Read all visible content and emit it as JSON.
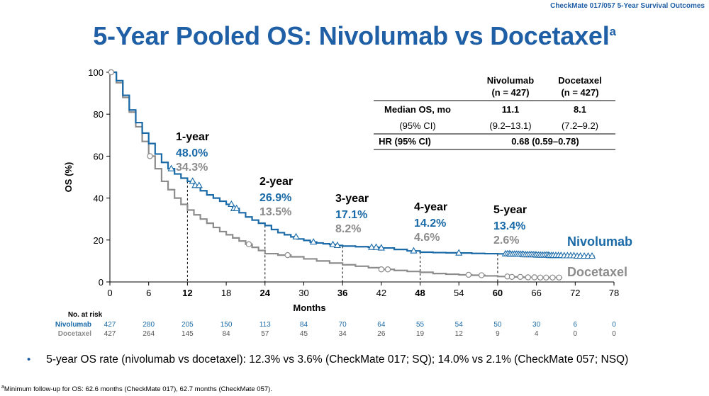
{
  "header": {
    "tag": "CheckMate 017/057 5-Year Survival Outcomes"
  },
  "title": {
    "main": "5-Year Pooled OS: Nivolumab vs Docetaxel",
    "superscript": "a"
  },
  "colors": {
    "nivolumab": "#1a6aa8",
    "docetaxel": "#8c8c8c",
    "title": "#1f5fa6"
  },
  "chart_data": {
    "type": "line",
    "ylabel": "OS (%)",
    "xlabel": "Months",
    "xlim": [
      0,
      78
    ],
    "ylim": [
      0,
      100
    ],
    "x_ticks": [
      0,
      6,
      12,
      18,
      24,
      30,
      36,
      42,
      48,
      54,
      60,
      66,
      72,
      78
    ],
    "y_ticks": [
      0,
      20,
      40,
      60,
      80,
      100
    ],
    "bold_x_ticks": [
      12,
      24,
      36,
      48,
      60
    ],
    "series": [
      {
        "name": "Nivolumab",
        "color": "#1a6aa8",
        "points": [
          [
            0,
            100
          ],
          [
            1,
            96
          ],
          [
            2,
            89
          ],
          [
            3,
            82
          ],
          [
            4,
            76
          ],
          [
            5,
            71
          ],
          [
            6,
            66
          ],
          [
            7,
            61
          ],
          [
            8,
            57
          ],
          [
            9,
            54
          ],
          [
            10,
            51.5
          ],
          [
            11,
            49.5
          ],
          [
            12,
            48
          ],
          [
            13,
            46
          ],
          [
            14,
            43.5
          ],
          [
            15,
            41.5
          ],
          [
            16,
            40
          ],
          [
            17,
            38.5
          ],
          [
            18,
            37
          ],
          [
            19,
            35
          ],
          [
            20,
            33
          ],
          [
            21,
            31
          ],
          [
            22,
            29.5
          ],
          [
            23,
            28
          ],
          [
            24,
            26.9
          ],
          [
            25,
            25
          ],
          [
            26,
            23.5
          ],
          [
            27,
            22.5
          ],
          [
            28,
            21.5
          ],
          [
            29,
            20.5
          ],
          [
            30,
            19.8
          ],
          [
            31,
            19
          ],
          [
            32,
            18.6
          ],
          [
            33,
            18.2
          ],
          [
            34,
            17.8
          ],
          [
            35,
            17.4
          ],
          [
            36,
            17.1
          ],
          [
            38,
            16.8
          ],
          [
            40,
            16.5
          ],
          [
            42,
            16.2
          ],
          [
            44,
            15.5
          ],
          [
            46,
            14.8
          ],
          [
            48,
            14.2
          ],
          [
            50,
            14
          ],
          [
            52,
            13.9
          ],
          [
            54,
            13.8
          ],
          [
            56,
            13.6
          ],
          [
            58,
            13.5
          ],
          [
            60,
            13.4
          ],
          [
            62,
            13.2
          ],
          [
            64,
            13
          ],
          [
            66,
            12.8
          ],
          [
            68,
            12.6
          ],
          [
            70,
            12.5
          ],
          [
            72,
            12.3
          ],
          [
            73,
            12.3
          ],
          [
            75,
            12.3
          ]
        ],
        "censor_x": [
          9.5,
          12.8,
          13.2,
          13.8,
          18.8,
          19.2,
          19.6,
          28.8,
          31.5,
          34.5,
          35.2,
          40.5,
          41.2,
          42,
          47,
          54,
          61.2,
          61.5,
          61.8,
          62,
          62.3,
          62.6,
          62.9,
          63.2,
          63.5,
          63.8,
          64,
          64.3,
          64.6,
          64.9,
          65.2,
          65.5,
          65.8,
          66,
          66.3,
          66.6,
          66.9,
          67.2,
          67.5,
          67.8,
          68,
          68.3,
          68.6,
          69,
          69.4,
          69.8,
          70.3,
          70.8,
          71.3,
          71.8,
          72.3,
          72.8,
          73.4,
          74,
          74.6
        ]
      },
      {
        "name": "Docetaxel",
        "color": "#8c8c8c",
        "points": [
          [
            0,
            100
          ],
          [
            1,
            95
          ],
          [
            2,
            88
          ],
          [
            3,
            81
          ],
          [
            4,
            74
          ],
          [
            5,
            67
          ],
          [
            6,
            60
          ],
          [
            7,
            54
          ],
          [
            8,
            48
          ],
          [
            9,
            44
          ],
          [
            10,
            40
          ],
          [
            11,
            37
          ],
          [
            12,
            34.3
          ],
          [
            13,
            32
          ],
          [
            14,
            30
          ],
          [
            15,
            28
          ],
          [
            16,
            26
          ],
          [
            17,
            24
          ],
          [
            18,
            22.5
          ],
          [
            19,
            21
          ],
          [
            20,
            19.5
          ],
          [
            21,
            18
          ],
          [
            22,
            16.5
          ],
          [
            23,
            15
          ],
          [
            24,
            13.5
          ],
          [
            26,
            12.8
          ],
          [
            28,
            12
          ],
          [
            30,
            11
          ],
          [
            32,
            10
          ],
          [
            34,
            9
          ],
          [
            36,
            8.2
          ],
          [
            38,
            7.5
          ],
          [
            40,
            6.8
          ],
          [
            42,
            6
          ],
          [
            44,
            5.5
          ],
          [
            46,
            5
          ],
          [
            48,
            4.6
          ],
          [
            50,
            4
          ],
          [
            52,
            3.7
          ],
          [
            54,
            3.4
          ],
          [
            56,
            3.2
          ],
          [
            58,
            2.9
          ],
          [
            60,
            2.6
          ],
          [
            62,
            2.4
          ],
          [
            64,
            2.2
          ],
          [
            66,
            2.1
          ],
          [
            68,
            2.1
          ],
          [
            70,
            2.1
          ]
        ],
        "censor_x": [
          0.2,
          6.2,
          21.5,
          27.5,
          42,
          43,
          55.5,
          57.5,
          61.5,
          62.2,
          63.5,
          64.7,
          65.7,
          66.6,
          67.5,
          68.5,
          69.5
        ]
      }
    ],
    "annotations": [
      {
        "label": "1-year",
        "x": 12,
        "niv": "48.0%",
        "doc": "34.3%",
        "top": 90
      },
      {
        "label": "2-year",
        "x": 24,
        "niv": "26.9%",
        "doc": "13.5%",
        "top": 90
      },
      {
        "label": "3-year",
        "x": 36,
        "niv": "17.1%",
        "doc": "8.2%",
        "top": 90
      },
      {
        "label": "4-year",
        "x": 48,
        "niv": "14.2%",
        "doc": "4.6%",
        "top": 90
      },
      {
        "label": "5-year",
        "x": 60,
        "niv": "13.4%",
        "doc": "2.6%",
        "top": 90
      }
    ],
    "risk_table": {
      "title": "No. at risk",
      "rows": [
        {
          "name": "Nivolumab",
          "values": [
            "427",
            "280",
            "205",
            "150",
            "113",
            "84",
            "70",
            "64",
            "55",
            "54",
            "50",
            "30",
            "6",
            "0"
          ]
        },
        {
          "name": "Docetaxel",
          "values": [
            "427",
            "264",
            "145",
            "84",
            "57",
            "45",
            "34",
            "26",
            "19",
            "12",
            "9",
            "4",
            "0",
            "0"
          ]
        }
      ]
    }
  },
  "summary_table": {
    "col1_title": "Nivolumab",
    "col1_n": "(n = 427)",
    "col2_title": "Docetaxel",
    "col2_n": "(n = 427)",
    "rows": [
      {
        "label": "Median OS, mo",
        "niv": "11.1",
        "doc": "8.1"
      },
      {
        "label": "(95% CI)",
        "niv": "(9.2–13.1)",
        "doc": "(7.2–9.2)"
      }
    ],
    "hr_label": "HR (95% CI)",
    "hr_value": "0.68 (0.59–0.78)"
  },
  "bullet": "5-year OS rate (nivolumab vs docetaxel): 12.3% vs 3.6% (CheckMate 017; SQ); 14.0% vs 2.1% (CheckMate 057; NSQ)",
  "bullet_marker": "•",
  "footnote": {
    "sup": "a",
    "text": "Minimum follow-up for OS: 62.6 months (CheckMate 017), 62.7 months (CheckMate 057)."
  }
}
